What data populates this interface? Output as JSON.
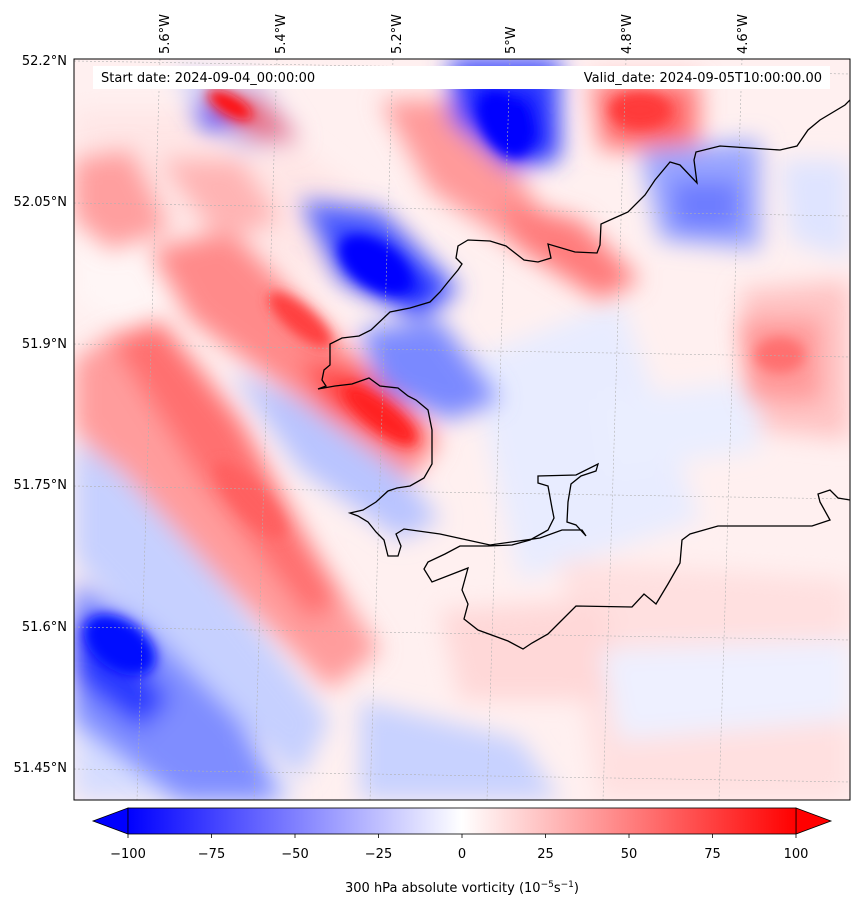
{
  "header": {
    "start_date": "Start date: 2024-09-04_00:00:00",
    "valid_date": "Valid_date: 2024-09-05T10:00:00.00"
  },
  "map": {
    "lon_labels": [
      "5.6°W",
      "5.4°W",
      "5.2°W",
      "5°W",
      "4.8°W",
      "4.6°W"
    ],
    "lat_labels": [
      "52.2°N",
      "52.05°N",
      "51.9°N",
      "51.75°N",
      "51.6°N",
      "51.45°N"
    ],
    "field": "300 hPa absolute vorticity"
  },
  "colorbar": {
    "ticks": [
      "−100",
      "−75",
      "−50",
      "−25",
      "0",
      "25",
      "50",
      "75",
      "100"
    ],
    "range": [
      -100,
      100
    ],
    "label": "300 hPa absolute vorticity (10",
    "label_exp1": "−5",
    "label_mid": "s",
    "label_exp2": "−1",
    "label_end": ")",
    "colors": {
      "min": "#0000ff",
      "mid": "#ffffff",
      "max": "#ff0000"
    }
  }
}
